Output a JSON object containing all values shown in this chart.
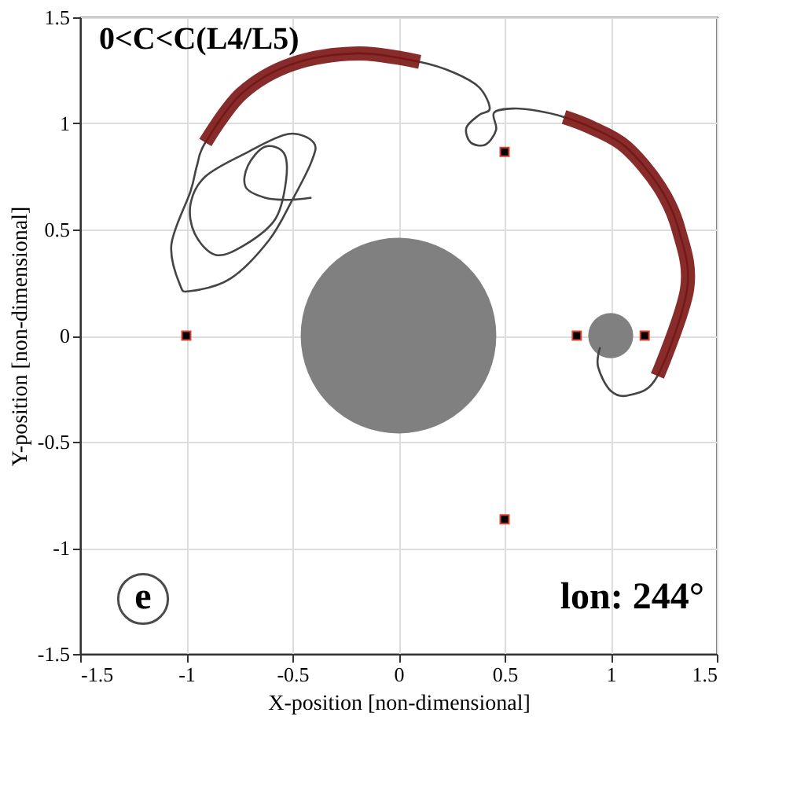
{
  "chart_data": {
    "type": "line",
    "xlabel": "X-position [non-dimensional]",
    "ylabel": "Y-position [non-dimensional]",
    "annotations": [
      "0<C<C(L4/L5)",
      "e",
      "lon: 244°"
    ],
    "xlim": [
      -1.5,
      1.5
    ],
    "ylim": [
      -1.5,
      1.5
    ],
    "xticks": [
      -1.5,
      -1,
      -0.5,
      0,
      0.5,
      1,
      1.5
    ],
    "yticks": [
      -1.5,
      -1,
      -0.5,
      0,
      0.5,
      1,
      1.5
    ],
    "grid": true,
    "series": [
      {
        "type": "bubble",
        "color": "#808080",
        "x": [
          0,
          1
        ],
        "values": [
          0,
          0
        ],
        "sizes": [
          1,
          0.053
        ]
      },
      {
        "color": "#444444",
        "x": [
          0.95,
          0.94,
          1.0,
          1.09,
          1.22,
          1.36,
          1.32,
          1.23,
          1.07,
          0.91,
          0.78,
          0.65,
          0.54,
          0.45,
          0.46,
          0.41,
          0.34,
          0.32,
          0.38,
          0.43,
          0.38,
          0.26,
          0.1,
          -0.19,
          -0.5,
          -0.74,
          -0.91,
          -0.95,
          -0.98,
          -1.07,
          -1.03,
          -0.98,
          -0.79,
          -0.61,
          -0.5,
          -0.41,
          -0.4,
          -0.52,
          -0.72,
          -0.91,
          -0.98,
          -0.96,
          -0.86,
          -0.72,
          -0.58,
          -0.53,
          -0.54,
          -0.63,
          -0.71,
          -0.72,
          -0.63,
          -0.52,
          -0.41
        ],
        "values": [
          -0.055,
          -0.145,
          -0.26,
          -0.28,
          -0.19,
          0.22,
          0.5,
          0.7,
          0.89,
          0.98,
          1.03,
          1.06,
          1.07,
          1.05,
          0.97,
          0.9,
          0.91,
          0.98,
          1.04,
          1.07,
          1.17,
          1.24,
          1.29,
          1.33,
          1.28,
          1.14,
          0.91,
          0.8,
          0.68,
          0.43,
          0.24,
          0.21,
          0.27,
          0.45,
          0.64,
          0.82,
          0.91,
          0.95,
          0.86,
          0.75,
          0.62,
          0.48,
          0.38,
          0.43,
          0.55,
          0.73,
          0.86,
          0.89,
          0.8,
          0.7,
          0.65,
          0.64,
          0.65
        ]
      },
      {
        "color": "#7a1414",
        "x": [
          1.22,
          1.36,
          1.32,
          1.23,
          1.07,
          0.91,
          0.78
        ],
        "values": [
          -0.19,
          0.22,
          0.5,
          0.7,
          0.89,
          0.98,
          1.03
        ]
      },
      {
        "color": "#7a1414",
        "x": [
          0.1,
          -0.19,
          -0.5,
          -0.74,
          -0.91
        ],
        "values": [
          1.29,
          1.33,
          1.28,
          1.14,
          0.91
        ]
      },
      {
        "type": "scatter",
        "color": "#000000",
        "marker": "square",
        "x": [
          -1,
          0.5,
          0.5,
          0.84,
          1.16
        ],
        "values": [
          0,
          0.866,
          -0.866,
          0,
          0
        ]
      }
    ]
  }
}
